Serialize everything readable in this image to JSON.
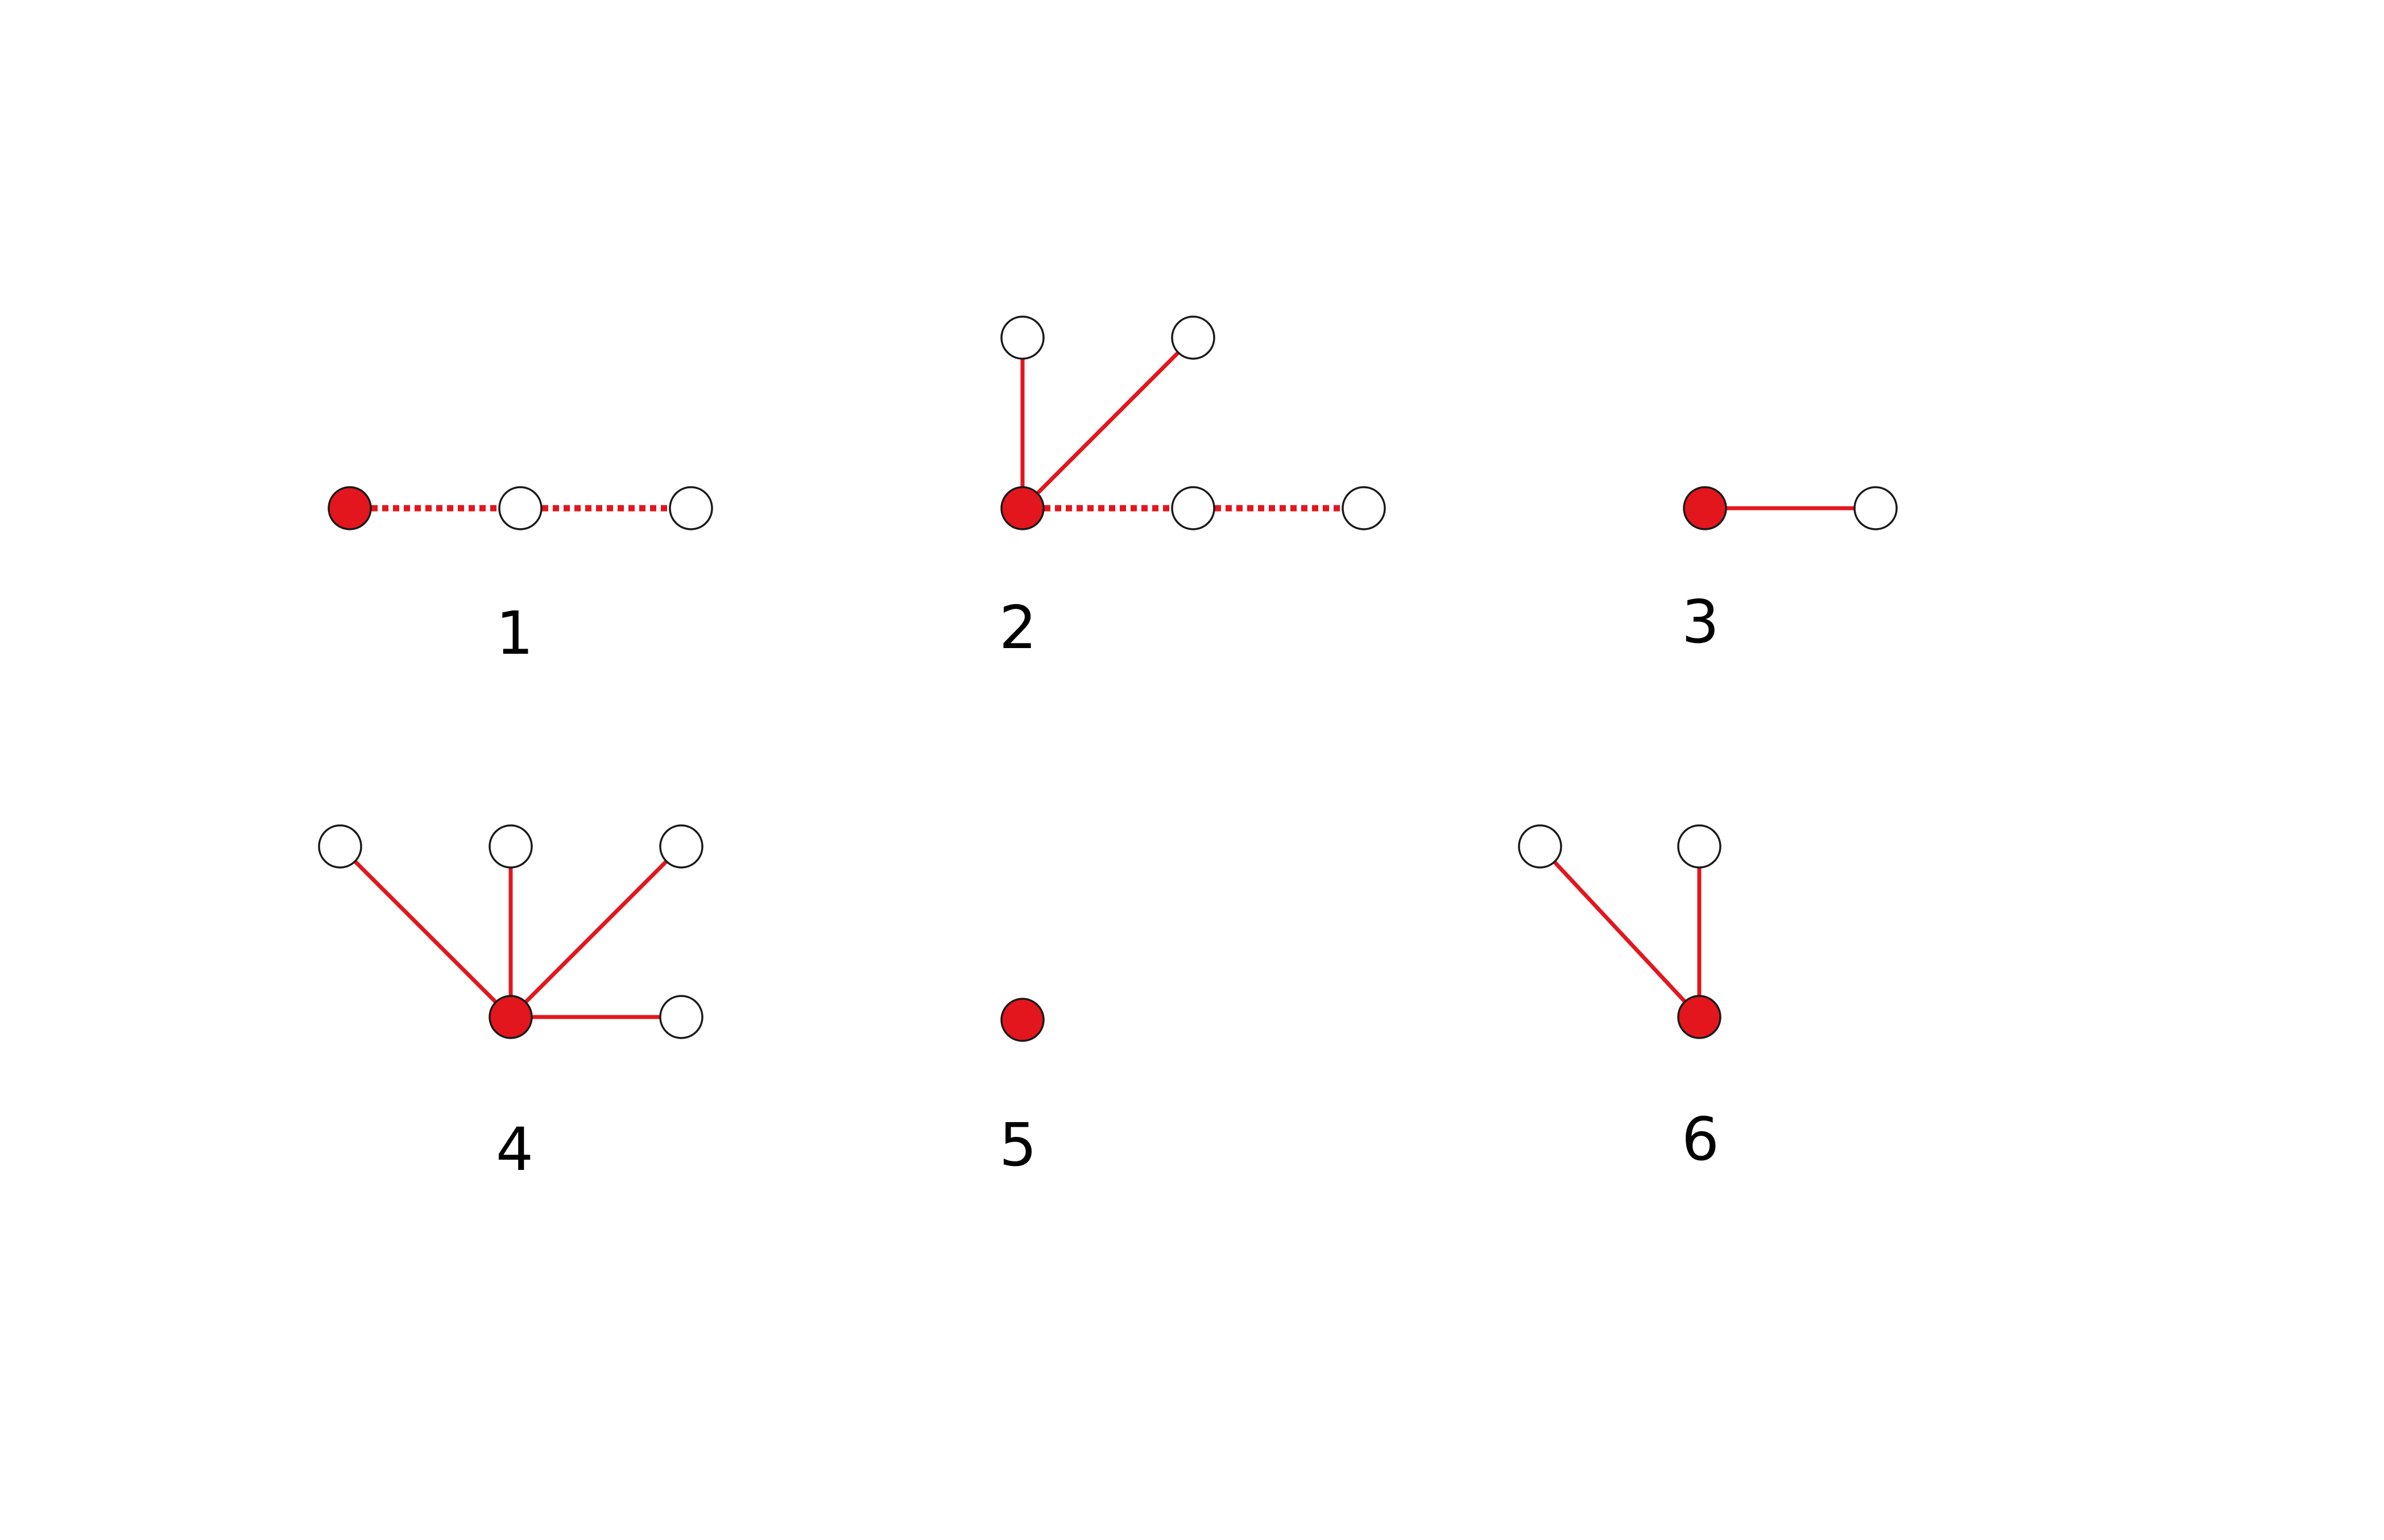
{
  "palette": {
    "edge": "#e3161d",
    "node_filled": "#e3161d",
    "node_empty": "#ffffff",
    "node_outline": "#1a1a1a",
    "label": "#000000"
  },
  "panels": [
    {
      "label": "1",
      "center_fill": "red",
      "edges": [
        {
          "to": "right-node-1",
          "style": "dotted"
        },
        {
          "from": "right-node-1",
          "to": "right-node-2",
          "style": "dotted"
        }
      ]
    },
    {
      "label": "2",
      "center_fill": "red",
      "edges": [
        {
          "to": "top-node",
          "style": "solid"
        },
        {
          "to": "top-right-node",
          "style": "solid"
        },
        {
          "to": "right-node-1",
          "style": "dotted"
        },
        {
          "from": "right-node-1",
          "to": "right-node-2",
          "style": "dotted"
        }
      ]
    },
    {
      "label": "3",
      "center_fill": "red",
      "edges": [
        {
          "to": "right-node",
          "style": "solid"
        }
      ]
    },
    {
      "label": "4",
      "center_fill": "red",
      "edges": [
        {
          "to": "top-left-node",
          "style": "solid"
        },
        {
          "to": "top-node",
          "style": "solid"
        },
        {
          "to": "top-right-node",
          "style": "solid"
        },
        {
          "to": "right-node",
          "style": "solid"
        }
      ]
    },
    {
      "label": "5",
      "center_fill": "red",
      "edges": []
    },
    {
      "label": "6",
      "center_fill": "red",
      "edges": [
        {
          "to": "top-left-node",
          "style": "solid"
        },
        {
          "to": "top-node",
          "style": "solid"
        }
      ]
    }
  ]
}
